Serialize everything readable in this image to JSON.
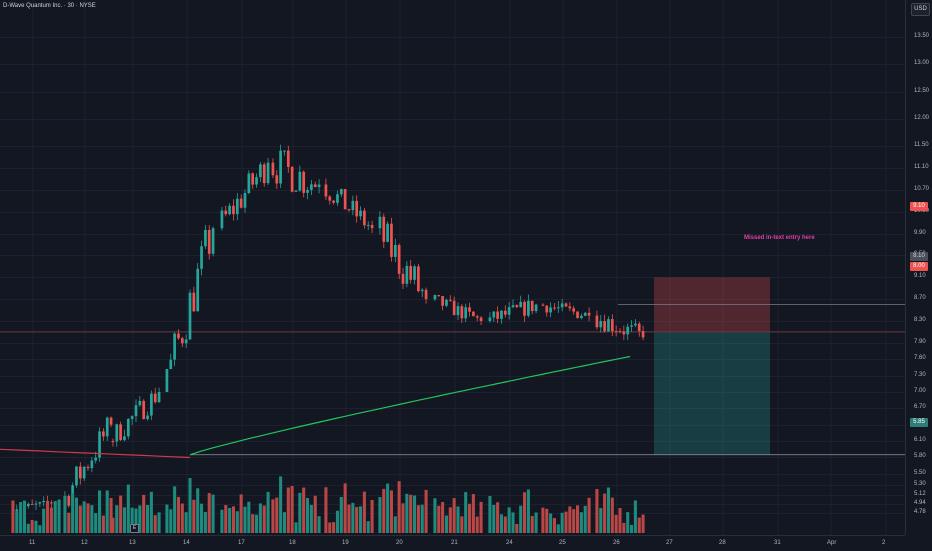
{
  "symbol": {
    "title": "D-Wave Quantum Inc. · 30 · NYSE"
  },
  "currency": "USD",
  "colors": {
    "up": "#26a69a",
    "down": "#ef5350",
    "volume_up": "#1d8b7e",
    "volume_down": "#b94746",
    "ma_fast": "#22c55e",
    "ma_slow": "#d03a4a",
    "annotation": "#e040a0"
  },
  "price_axis": {
    "labels": [
      "13.50",
      "13.00",
      "12.50",
      "12.00",
      "11.50",
      "11.10",
      "10.70",
      "10.30",
      "9.90",
      "9.50",
      "9.10",
      "8.70",
      "8.30",
      "7.90",
      "7.60",
      "7.30",
      "7.00",
      "6.70",
      "6.40",
      "6.10",
      "5.80",
      "5.50",
      "5.30",
      "5.12",
      "4.94",
      "4.78"
    ],
    "range": [
      4.6,
      13.85
    ]
  },
  "time_axis": {
    "labels": [
      "11",
      "12",
      "13",
      "14",
      "17",
      "18",
      "19",
      "20",
      "21",
      "24",
      "25",
      "26",
      "27",
      "28",
      "31",
      "Apr",
      "2"
    ]
  },
  "price_tags": {
    "stop": "9.10",
    "entry": "8.10",
    "current": "8.00",
    "target": "5.85"
  },
  "annotation": {
    "text": "Missed in-text entry here"
  },
  "earnings_flag": "E",
  "chart_data": {
    "type": "candlestick",
    "timeframe": "30",
    "sessions": [
      {
        "label": "11",
        "open": 4.86,
        "close": 5.0,
        "high": 5.1,
        "low": 4.78
      },
      {
        "label": "12",
        "open": 4.95,
        "close": 6.4,
        "high": 6.55,
        "low": 4.88
      },
      {
        "label": "13",
        "open": 6.1,
        "close": 7.0,
        "high": 7.08,
        "low": 5.8
      },
      {
        "label": "14",
        "open": 7.0,
        "close": 10.0,
        "high": 10.1,
        "low": 7.4
      },
      {
        "label": "17",
        "open": 10.0,
        "close": 11.2,
        "high": 11.5,
        "low": 9.8
      },
      {
        "label": "18",
        "open": 11.2,
        "close": 10.8,
        "high": 11.95,
        "low": 9.8
      },
      {
        "label": "19",
        "open": 10.8,
        "close": 10.0,
        "high": 11.2,
        "low": 9.9
      },
      {
        "label": "20",
        "open": 10.0,
        "close": 8.7,
        "high": 10.9,
        "low": 8.6
      },
      {
        "label": "21",
        "open": 8.7,
        "close": 8.3,
        "high": 9.0,
        "low": 8.2
      },
      {
        "label": "24",
        "open": 8.3,
        "close": 8.6,
        "high": 9.15,
        "low": 8.25
      },
      {
        "label": "25",
        "open": 8.6,
        "close": 8.4,
        "high": 8.85,
        "low": 8.15
      },
      {
        "label": "26",
        "open": 8.4,
        "close": 8.0,
        "high": 9.1,
        "low": 7.95
      }
    ],
    "moving_averages": [
      {
        "color": "green",
        "start": 5.85,
        "end": 7.65
      },
      {
        "color": "red",
        "start": 5.95,
        "end": 5.8
      }
    ],
    "trade_setup": {
      "type": "long",
      "entry": 8.1,
      "stop": 9.1,
      "target": 5.85
    },
    "horizontal_lines": [
      8.6,
      8.1,
      5.85
    ]
  }
}
